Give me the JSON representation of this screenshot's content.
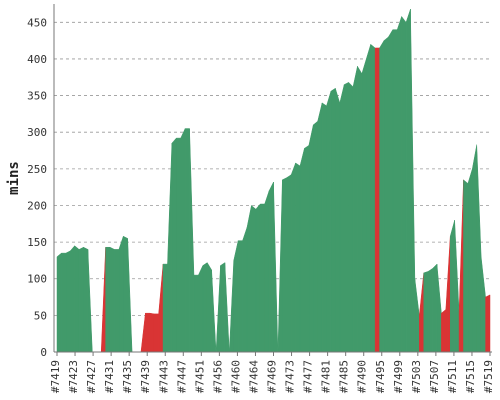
{
  "chart_data": {
    "type": "area",
    "ylabel": "mins",
    "ylim": [
      0,
      475
    ],
    "yticks": [
      0,
      50,
      100,
      150,
      200,
      250,
      300,
      350,
      400,
      450
    ],
    "xtick_labels": [
      "#7419",
      "#7423",
      "#7427",
      "#7431",
      "#7435",
      "#7439",
      "#7443",
      "#7447",
      "#7451",
      "#7456",
      "#7460",
      "#7464",
      "#7469",
      "#7473",
      "#7477",
      "#7481",
      "#7485",
      "#7490",
      "#7495",
      "#7499",
      "#7503",
      "#7507",
      "#7511",
      "#7515",
      "#7519"
    ],
    "grid": true,
    "colors": {
      "success": "#419a6a",
      "failure": "#d93434"
    },
    "values": [
      130,
      135,
      135,
      138,
      145,
      140,
      143,
      140,
      0,
      0,
      0,
      143,
      143,
      140,
      140,
      158,
      155,
      0,
      0,
      0,
      53,
      53,
      52,
      52,
      120,
      120,
      285,
      292,
      292,
      305,
      305,
      105,
      105,
      118,
      122,
      112,
      0,
      118,
      122,
      0,
      125,
      152,
      152,
      170,
      200,
      195,
      202,
      202,
      220,
      232,
      0,
      235,
      238,
      242,
      258,
      254,
      278,
      282,
      310,
      315,
      340,
      336,
      356,
      360,
      340,
      365,
      368,
      362,
      390,
      380,
      400,
      420,
      415,
      415,
      425,
      430,
      440,
      440,
      458,
      450,
      468,
      100,
      50,
      108,
      110,
      114,
      120,
      53,
      58,
      158,
      180,
      55,
      235,
      230,
      250,
      283,
      130,
      75,
      78
    ],
    "status": [
      "s",
      "s",
      "s",
      "s",
      "s",
      "s",
      "s",
      "s",
      "f",
      "f",
      "f",
      "s",
      "s",
      "s",
      "s",
      "s",
      "s",
      "f",
      "f",
      "f",
      "f",
      "f",
      "f",
      "f",
      "s",
      "s",
      "s",
      "s",
      "s",
      "s",
      "s",
      "s",
      "s",
      "s",
      "s",
      "s",
      "s",
      "s",
      "s",
      "s",
      "s",
      "s",
      "s",
      "s",
      "s",
      "s",
      "s",
      "s",
      "s",
      "s",
      "s",
      "s",
      "s",
      "s",
      "s",
      "s",
      "s",
      "s",
      "s",
      "s",
      "s",
      "s",
      "s",
      "s",
      "s",
      "s",
      "s",
      "s",
      "s",
      "s",
      "s",
      "s",
      "f",
      "s",
      "s",
      "s",
      "s",
      "s",
      "s",
      "s",
      "s",
      "s",
      "f",
      "s",
      "s",
      "s",
      "s",
      "f",
      "f",
      "s",
      "s",
      "f",
      "s",
      "s",
      "s",
      "s",
      "s",
      "f",
      "s"
    ]
  }
}
